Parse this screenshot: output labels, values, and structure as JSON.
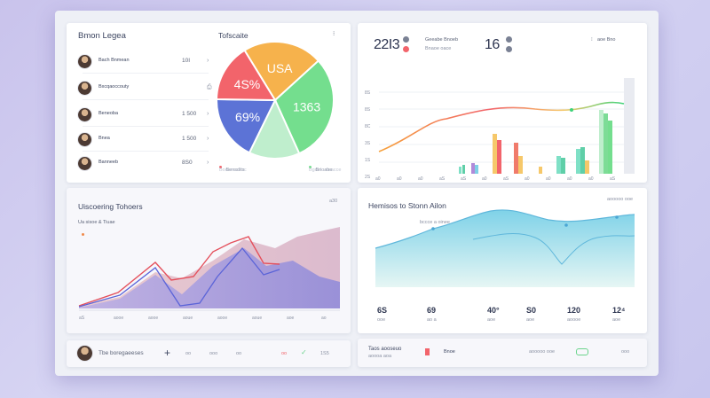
{
  "people_card": {
    "title": "Bmon Legea",
    "rows": [
      {
        "name": "Bach Bnmean",
        "sub": "",
        "value": "10I",
        "action": "›"
      },
      {
        "name": "Bxcqaoccouty",
        "sub": "",
        "value": "",
        "action": "⎙"
      },
      {
        "name": "Beneoba",
        "sub": "",
        "value": "1 500",
        "action": "›"
      },
      {
        "name": "Bnea",
        "sub": "•",
        "value": "1 500",
        "action": "›"
      },
      {
        "name": "Banneeb",
        "sub": "",
        "value": "8S0",
        "action": "›"
      }
    ]
  },
  "pie_card": {
    "title": "Tofscaite",
    "menu": "⁝",
    "slices": [
      {
        "label": "USA",
        "value": 22,
        "color": "#f6b24c"
      },
      {
        "label": "1363",
        "value": 30,
        "color": "#74de8e"
      },
      {
        "label": "",
        "value": 14,
        "color": "#bfeecd"
      },
      {
        "label": "69%",
        "value": 18,
        "color": "#5c73d6"
      },
      {
        "label": "4S%",
        "value": 16,
        "color": "#f2646b"
      }
    ],
    "legend": [
      {
        "label": "Bensdits",
        "color": "#f2646b"
      },
      {
        "label": "Bnoabe",
        "color": "#74de8e"
      }
    ],
    "legend_sub": "Boosnectroc",
    "legend_sub2": "Bgnelo doacce"
  },
  "bar_card": {
    "stat1_value": "22I3",
    "stat1_label1": "Geeabe Bnoeb",
    "stat1_label2": "Bnaoe oace",
    "stat2_value": "16",
    "stat2_label": "aoe Bno",
    "menu": "⁝",
    "y_labels": [
      "8S",
      "8S",
      "8C",
      "3S",
      "1S",
      "2S"
    ],
    "x_labels": [
      "a0",
      "a0",
      "a0",
      "aS",
      "aS",
      "a0",
      "aS",
      "a0",
      "a0",
      "a0",
      "a0",
      "aS"
    ]
  },
  "area_card": {
    "title": "Uiscoering Tohoers",
    "subtitle": "Ua sisoe & Tiuae",
    "menu": "a30",
    "x_labels": [
      "aS",
      "aooe",
      "aooe",
      "aoue",
      "aooe",
      "aoue",
      "aoe",
      "ao"
    ]
  },
  "wave_card": {
    "title": "Hemisos to Stonn Ailon",
    "subtitle": "bccce a oinee",
    "menu": "aooooo ooe",
    "stats": [
      {
        "value": "6S",
        "label": "ooe"
      },
      {
        "value": "69",
        "label": "ao a"
      },
      {
        "value": "40°",
        "label": "aoe"
      },
      {
        "value": "S0",
        "label": "aoe"
      },
      {
        "value": "120",
        "label": "aoooe"
      },
      {
        "value": "12⁴",
        "label": "aoe"
      }
    ]
  },
  "bottom_left": {
    "label": "Tbe boregaeeses",
    "plus": "+",
    "items": [
      "oo",
      "ooo",
      "oo",
      "oo"
    ],
    "count": "1S5"
  },
  "bottom_right": {
    "label": "Taos aooseuo",
    "sub": "aoooa aoa",
    "mid": "Bnoe",
    "right": "aooooo ooe",
    "end": "ooo"
  }
}
